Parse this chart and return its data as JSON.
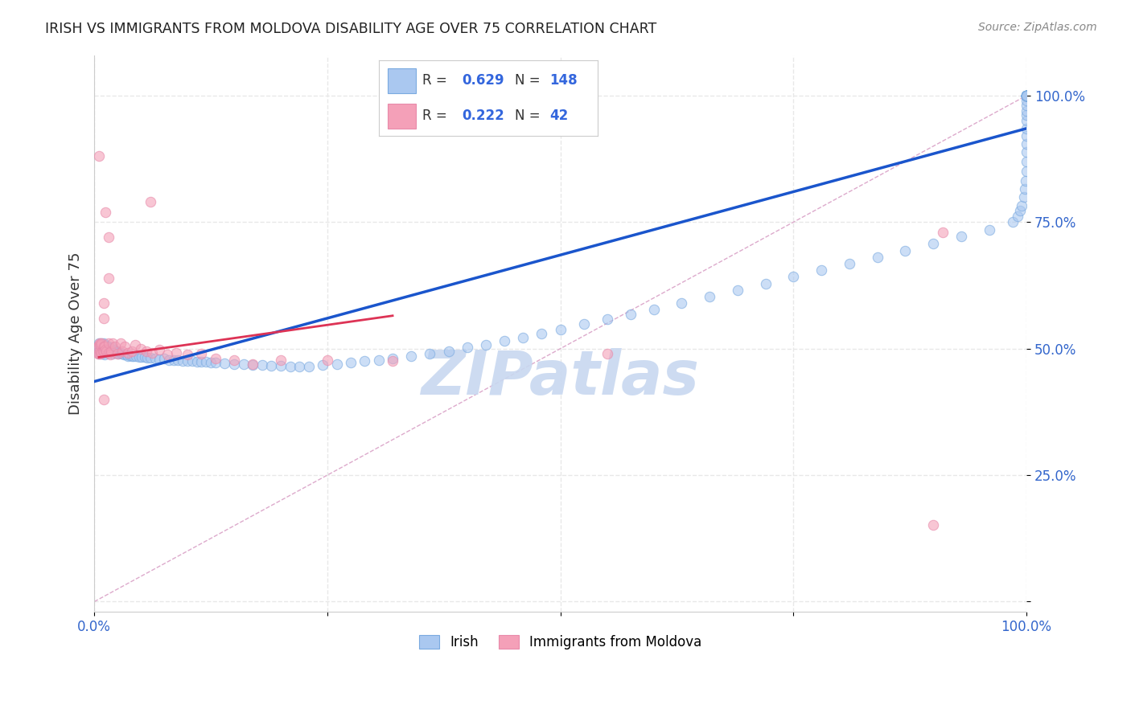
{
  "title": "IRISH VS IMMIGRANTS FROM MOLDOVA DISABILITY AGE OVER 75 CORRELATION CHART",
  "source": "Source: ZipAtlas.com",
  "ylabel": "Disability Age Over 75",
  "xlim": [
    0.0,
    1.0
  ],
  "ylim": [
    -0.02,
    1.08
  ],
  "irish_color": "#aac8f0",
  "moldovan_color": "#f4a0b8",
  "irish_edge_color": "#7aaae0",
  "moldovan_edge_color": "#e88aaa",
  "irish_line_color": "#1a55cc",
  "moldovan_line_color": "#dd3355",
  "irish_R": 0.629,
  "irish_N": 148,
  "moldovan_R": 0.222,
  "moldovan_N": 42,
  "watermark": "ZIPatlas",
  "watermark_color": "#c8d8f0",
  "legend_color": "#3366dd",
  "background_color": "#ffffff",
  "grid_color": "#e8e8e8",
  "tick_label_color": "#3366cc",
  "ref_line_color": "#ddaacc",
  "irish_line_x": [
    0.0,
    1.0
  ],
  "irish_line_y": [
    0.435,
    0.935
  ],
  "moldovan_line_x": [
    0.005,
    0.32
  ],
  "moldovan_line_y": [
    0.483,
    0.565
  ],
  "ref_line_x": [
    0.0,
    1.0
  ],
  "ref_line_y": [
    0.0,
    1.0
  ],
  "irish_x": [
    0.004,
    0.004,
    0.005,
    0.005,
    0.006,
    0.007,
    0.008,
    0.008,
    0.009,
    0.009,
    0.01,
    0.01,
    0.01,
    0.011,
    0.011,
    0.011,
    0.012,
    0.012,
    0.013,
    0.013,
    0.014,
    0.014,
    0.015,
    0.015,
    0.016,
    0.016,
    0.017,
    0.018,
    0.019,
    0.02,
    0.02,
    0.021,
    0.022,
    0.023,
    0.024,
    0.025,
    0.026,
    0.028,
    0.03,
    0.032,
    0.034,
    0.036,
    0.038,
    0.04,
    0.042,
    0.045,
    0.048,
    0.051,
    0.054,
    0.057,
    0.06,
    0.065,
    0.07,
    0.075,
    0.08,
    0.085,
    0.09,
    0.095,
    0.1,
    0.105,
    0.11,
    0.115,
    0.12,
    0.125,
    0.13,
    0.14,
    0.15,
    0.16,
    0.17,
    0.18,
    0.19,
    0.2,
    0.21,
    0.22,
    0.23,
    0.245,
    0.26,
    0.275,
    0.29,
    0.305,
    0.32,
    0.34,
    0.36,
    0.38,
    0.4,
    0.42,
    0.44,
    0.46,
    0.48,
    0.5,
    0.525,
    0.55,
    0.575,
    0.6,
    0.63,
    0.66,
    0.69,
    0.72,
    0.75,
    0.78,
    0.81,
    0.84,
    0.87,
    0.9,
    0.93,
    0.96,
    0.985,
    0.99,
    0.993,
    0.995,
    0.997,
    0.998,
    0.999,
    1.0,
    1.0,
    1.0,
    1.0,
    1.0,
    1.0,
    1.0,
    1.0,
    1.0,
    1.0,
    1.0,
    1.0,
    1.0,
    1.0,
    1.0,
    1.0,
    1.0,
    1.0,
    1.0,
    1.0,
    1.0,
    1.0,
    1.0,
    1.0,
    1.0,
    1.0,
    1.0,
    1.0,
    1.0,
    1.0,
    1.0
  ],
  "irish_y": [
    0.505,
    0.495,
    0.51,
    0.49,
    0.505,
    0.498,
    0.51,
    0.49,
    0.505,
    0.492,
    0.51,
    0.502,
    0.492,
    0.508,
    0.498,
    0.488,
    0.505,
    0.495,
    0.505,
    0.493,
    0.503,
    0.493,
    0.505,
    0.492,
    0.503,
    0.495,
    0.5,
    0.497,
    0.495,
    0.502,
    0.49,
    0.498,
    0.495,
    0.493,
    0.492,
    0.495,
    0.49,
    0.492,
    0.49,
    0.488,
    0.488,
    0.486,
    0.487,
    0.485,
    0.486,
    0.485,
    0.483,
    0.483,
    0.483,
    0.482,
    0.482,
    0.48,
    0.479,
    0.48,
    0.478,
    0.477,
    0.477,
    0.476,
    0.476,
    0.475,
    0.474,
    0.474,
    0.474,
    0.473,
    0.472,
    0.471,
    0.47,
    0.469,
    0.468,
    0.467,
    0.466,
    0.466,
    0.465,
    0.465,
    0.465,
    0.468,
    0.47,
    0.473,
    0.476,
    0.478,
    0.48,
    0.485,
    0.49,
    0.495,
    0.502,
    0.508,
    0.515,
    0.522,
    0.53,
    0.538,
    0.548,
    0.558,
    0.568,
    0.578,
    0.59,
    0.602,
    0.615,
    0.628,
    0.642,
    0.655,
    0.668,
    0.68,
    0.694,
    0.708,
    0.722,
    0.735,
    0.75,
    0.762,
    0.772,
    0.782,
    0.8,
    0.815,
    0.832,
    0.85,
    0.87,
    0.888,
    0.905,
    0.92,
    0.935,
    0.95,
    0.962,
    0.97,
    0.98,
    0.99,
    1.0,
    1.0,
    1.0,
    1.0,
    1.0,
    1.0,
    1.0,
    1.0,
    1.0,
    1.0,
    1.0,
    1.0,
    1.0,
    1.0,
    1.0,
    1.0,
    1.0,
    1.0,
    1.0,
    1.0
  ],
  "moldovan_x": [
    0.004,
    0.004,
    0.005,
    0.005,
    0.006,
    0.006,
    0.007,
    0.007,
    0.008,
    0.008,
    0.009,
    0.01,
    0.01,
    0.011,
    0.012,
    0.013,
    0.015,
    0.015,
    0.017,
    0.018,
    0.02,
    0.022,
    0.025,
    0.028,
    0.03,
    0.033,
    0.036,
    0.04,
    0.044,
    0.05,
    0.056,
    0.062,
    0.07,
    0.078,
    0.088,
    0.1,
    0.115,
    0.13,
    0.15,
    0.17,
    0.2,
    0.25,
    0.32,
    0.55,
    0.9,
    0.91
  ],
  "moldovan_y": [
    0.49,
    0.505,
    0.49,
    0.508,
    0.495,
    0.51,
    0.49,
    0.508,
    0.493,
    0.51,
    0.495,
    0.505,
    0.495,
    0.505,
    0.498,
    0.495,
    0.492,
    0.51,
    0.488,
    0.495,
    0.51,
    0.505,
    0.49,
    0.51,
    0.495,
    0.505,
    0.492,
    0.495,
    0.508,
    0.5,
    0.495,
    0.492,
    0.498,
    0.488,
    0.492,
    0.488,
    0.49,
    0.48,
    0.478,
    0.47,
    0.478,
    0.478,
    0.475,
    0.49,
    0.152,
    0.73
  ],
  "moldovan_outliers_x": [
    0.005,
    0.01,
    0.01,
    0.012,
    0.015,
    0.01,
    0.015,
    0.06
  ],
  "moldovan_outliers_y": [
    0.88,
    0.56,
    0.59,
    0.77,
    0.72,
    0.4,
    0.64,
    0.79
  ]
}
